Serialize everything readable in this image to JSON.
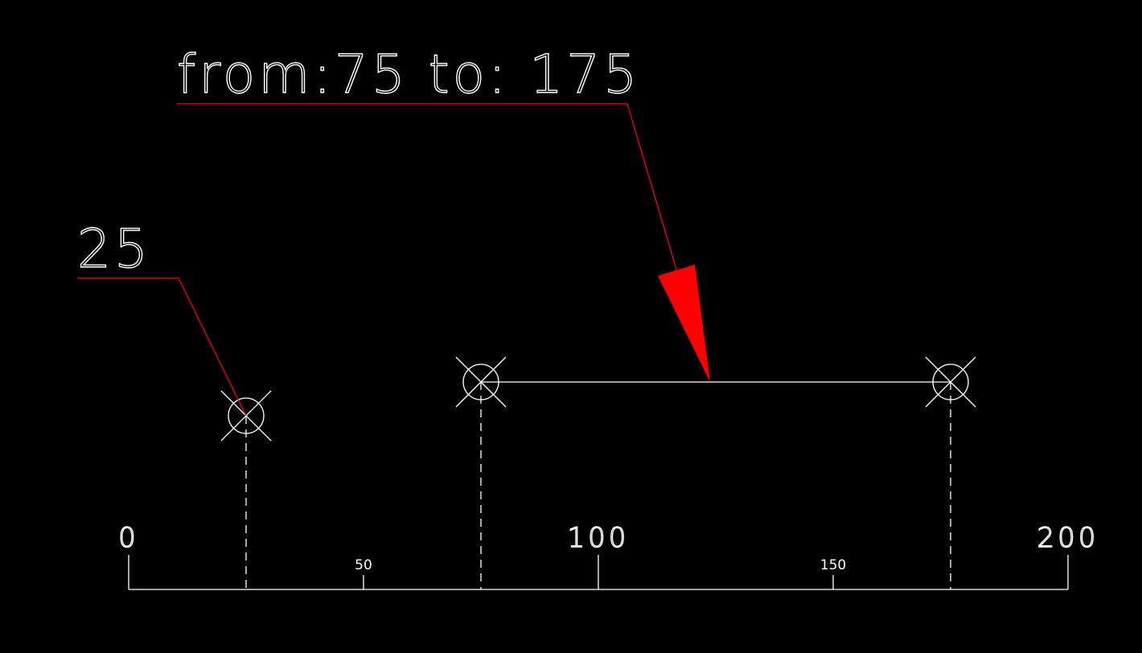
{
  "diagram": {
    "axis": {
      "min": 0,
      "max": 200,
      "major_ticks": [
        {
          "value": 0,
          "label": "0"
        },
        {
          "value": 100,
          "label": "100"
        },
        {
          "value": 200,
          "label": "200"
        }
      ],
      "minor_ticks": [
        {
          "value": 50,
          "label": "50"
        },
        {
          "value": 150,
          "label": "150"
        }
      ]
    },
    "markers": [
      {
        "id": "point-25",
        "value": 25,
        "level": "low"
      },
      {
        "id": "range-start-75",
        "value": 75,
        "level": "high"
      },
      {
        "id": "range-end-175",
        "value": 175,
        "level": "high"
      }
    ],
    "range": {
      "from": 75,
      "to": 175
    },
    "annotations": {
      "point_label": "25",
      "range_label": "from:75 to: 175"
    },
    "colors": {
      "background": "#000000",
      "line": "#ffffff",
      "leader": "#ff0000"
    }
  }
}
